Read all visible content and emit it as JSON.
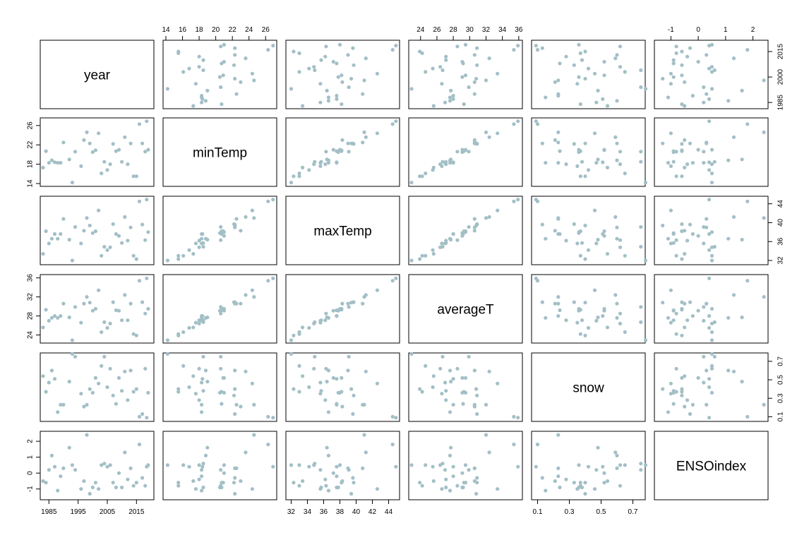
{
  "chart_data": {
    "type": "scatter",
    "kind": "scatterplot-matrix",
    "point_color": "#a3bfc6",
    "variables": [
      {
        "name": "year",
        "range": [
          1983,
          2020
        ],
        "ticks": [
          1985,
          1995,
          2005,
          2015
        ],
        "right_ticks": [
          1985,
          2000,
          2015
        ]
      },
      {
        "name": "minTemp",
        "range": [
          14,
          27
        ],
        "ticks": [
          14,
          16,
          18,
          20,
          22,
          24,
          26
        ],
        "left_ticks": [
          14,
          18,
          22,
          26
        ]
      },
      {
        "name": "maxTemp",
        "range": [
          31.7,
          45
        ],
        "ticks": [
          32,
          34,
          36,
          38,
          40,
          42,
          44
        ],
        "right_ticks": [
          32,
          36,
          40,
          44
        ]
      },
      {
        "name": "averageT",
        "range": [
          22.9,
          36.1
        ],
        "ticks": [
          24,
          26,
          28,
          30,
          32,
          34,
          36
        ],
        "left_ticks": [
          24,
          28,
          32,
          36
        ]
      },
      {
        "name": "snow",
        "range": [
          0.08,
          0.76
        ],
        "ticks": [
          0.1,
          0.3,
          0.5,
          0.7
        ],
        "right_ticks": [
          0.1,
          0.3,
          0.5,
          0.7
        ]
      },
      {
        "name": "ENSOindex",
        "range": [
          -1.5,
          2.45
        ],
        "ticks": [
          -1,
          0,
          1,
          2
        ],
        "left_ticks": [
          -1,
          0,
          1,
          2
        ]
      }
    ],
    "columns": [
      "year",
      "minTemp",
      "maxTemp",
      "averageT",
      "snow",
      "ENSOindex"
    ],
    "rows": [
      [
        1983,
        17.3,
        33.4,
        25.6,
        0.54,
        -0.5
      ],
      [
        1984,
        20.7,
        38.2,
        29.3,
        0.37,
        -0.6
      ],
      [
        1985,
        18.3,
        35.6,
        27.0,
        0.47,
        0.2
      ],
      [
        1986,
        18.8,
        36.6,
        27.6,
        0.6,
        1.1
      ],
      [
        1987,
        18.4,
        37.6,
        28.0,
        0.51,
        0.4
      ],
      [
        1988,
        18.3,
        36.6,
        27.6,
        0.15,
        -1.1
      ],
      [
        1989,
        18.3,
        37.6,
        28.0,
        0.23,
        -0.2
      ],
      [
        1990,
        22.5,
        40.8,
        30.6,
        0.23,
        0.3
      ],
      [
        1992,
        19.0,
        36.4,
        27.7,
        0.48,
        1.6
      ],
      [
        1993,
        14.2,
        32.0,
        22.9,
        0.78,
        0.5
      ],
      [
        1994,
        20.6,
        39.1,
        29.9,
        0.75,
        0.2
      ],
      [
        1996,
        17.6,
        35.6,
        26.6,
        0.35,
        -1.0
      ],
      [
        1997,
        23.0,
        38.3,
        30.6,
        0.21,
        -0.5
      ],
      [
        1998,
        24.6,
        41.0,
        32.0,
        0.23,
        2.4
      ],
      [
        1999,
        22.3,
        39.4,
        30.8,
        0.4,
        -1.3
      ],
      [
        2000,
        20.5,
        37.8,
        29.1,
        0.36,
        -0.9
      ],
      [
        2001,
        20.9,
        38.2,
        29.5,
        0.52,
        -0.6
      ],
      [
        2002,
        24.4,
        42.6,
        33.4,
        0.46,
        -1.0
      ],
      [
        2003,
        16.1,
        33.0,
        24.6,
        0.65,
        0.5
      ],
      [
        2004,
        18.5,
        34.9,
        26.7,
        0.75,
        0.6
      ],
      [
        2005,
        16.8,
        34.2,
        25.5,
        0.42,
        0.4
      ],
      [
        2006,
        18.0,
        34.8,
        26.4,
        0.62,
        0.5
      ],
      [
        2007,
        22.2,
        39.7,
        30.9,
        0.33,
        -0.6
      ],
      [
        2008,
        20.7,
        37.6,
        29.2,
        0.24,
        -0.9
      ],
      [
        2009,
        21.0,
        37.2,
        29.1,
        0.52,
        0.0
      ],
      [
        2010,
        18.5,
        35.7,
        27.1,
        0.38,
        -0.9
      ],
      [
        2011,
        23.6,
        41.2,
        32.4,
        0.59,
        1.3
      ],
      [
        2012,
        18.0,
        36.2,
        27.1,
        0.28,
        -0.4
      ],
      [
        2013,
        22.3,
        39.0,
        30.6,
        0.6,
        0.3
      ],
      [
        2014,
        15.5,
        33.0,
        24.2,
        0.37,
        -0.8
      ],
      [
        2015,
        15.5,
        32.3,
        23.9,
        0.4,
        -0.6
      ],
      [
        2016,
        26.3,
        44.5,
        35.4,
        0.1,
        1.8
      ],
      [
        2017,
        22.3,
        39.6,
        30.9,
        0.13,
        -0.3
      ],
      [
        2018,
        20.6,
        36.3,
        28.5,
        0.62,
        -0.8
      ],
      [
        2019,
        21.0,
        38.0,
        29.5,
        0.36,
        0.5
      ],
      [
        2018.5,
        26.9,
        44.9,
        35.9,
        0.09,
        0.4
      ]
    ]
  }
}
